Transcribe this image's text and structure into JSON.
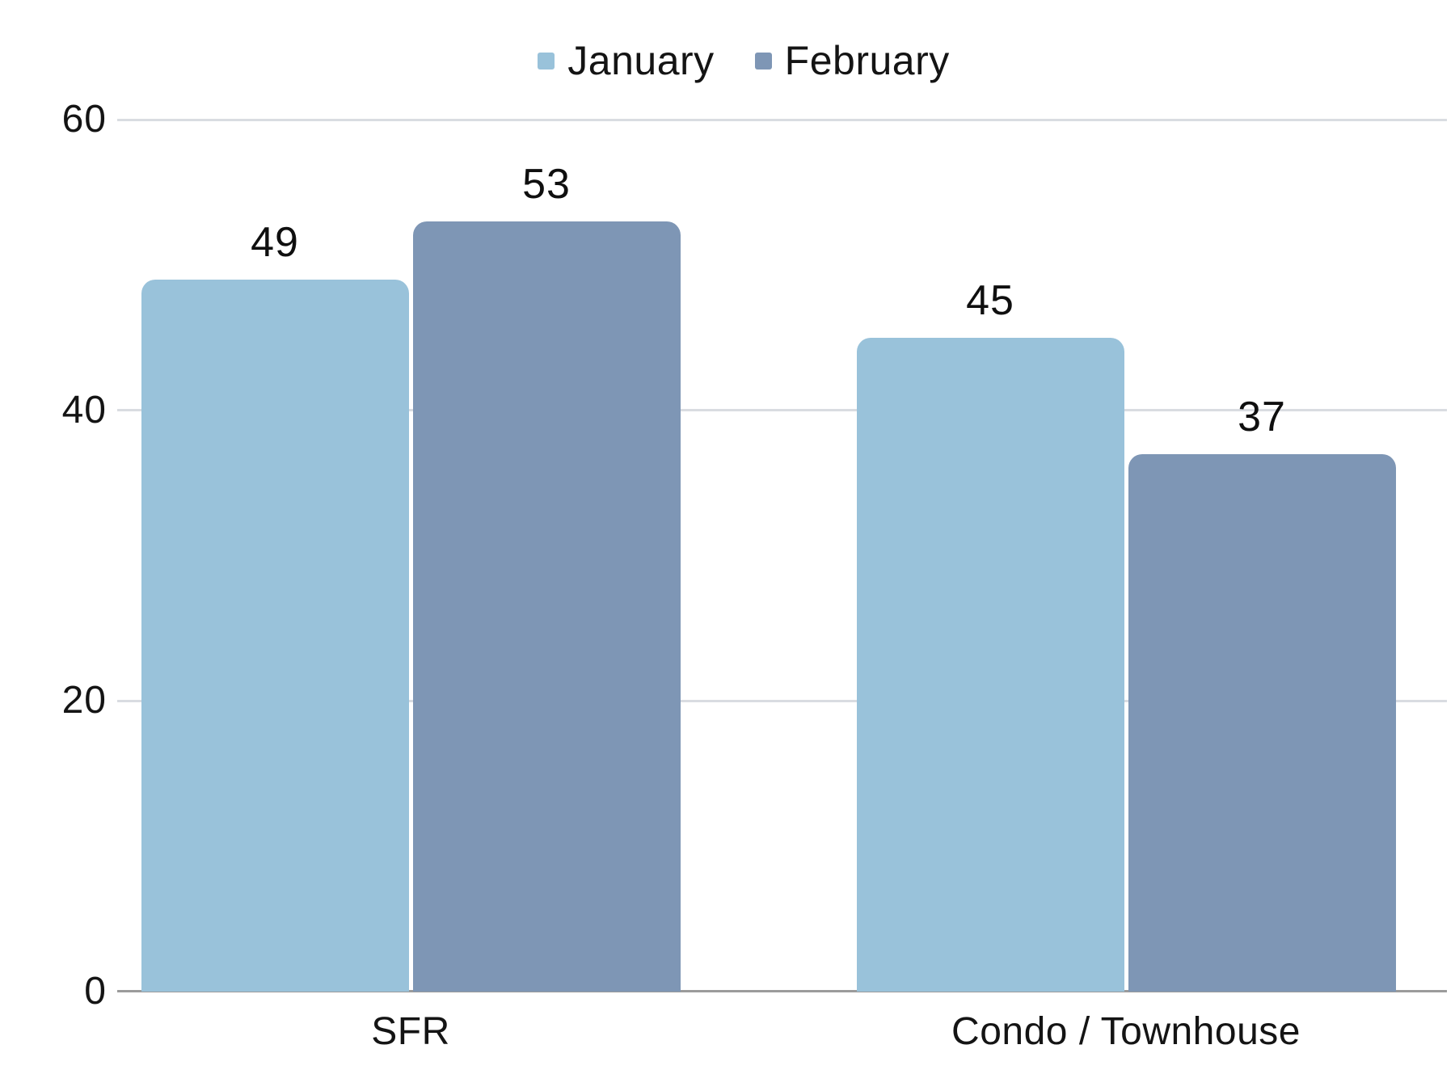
{
  "chart_data": {
    "type": "bar",
    "title": "",
    "xlabel": "",
    "ylabel": "",
    "categories": [
      "SFR",
      "Condo / Townhouse"
    ],
    "series": [
      {
        "name": "January",
        "color": "#99C2DA",
        "values": [
          49,
          45
        ]
      },
      {
        "name": "February",
        "color": "#7E96B5",
        "values": [
          53,
          37
        ]
      }
    ],
    "ylim": [
      0,
      60
    ],
    "yticks": [
      0,
      20,
      40,
      60
    ],
    "grid": true,
    "legend_position": "top-center",
    "value_labels": true
  },
  "colors": {
    "background": "#FFFFFF",
    "gridline": "#D9DCE1",
    "axis_line": "#9B9B9B",
    "text": "#141414",
    "january": "#99C2DA",
    "february": "#7E96B5"
  }
}
